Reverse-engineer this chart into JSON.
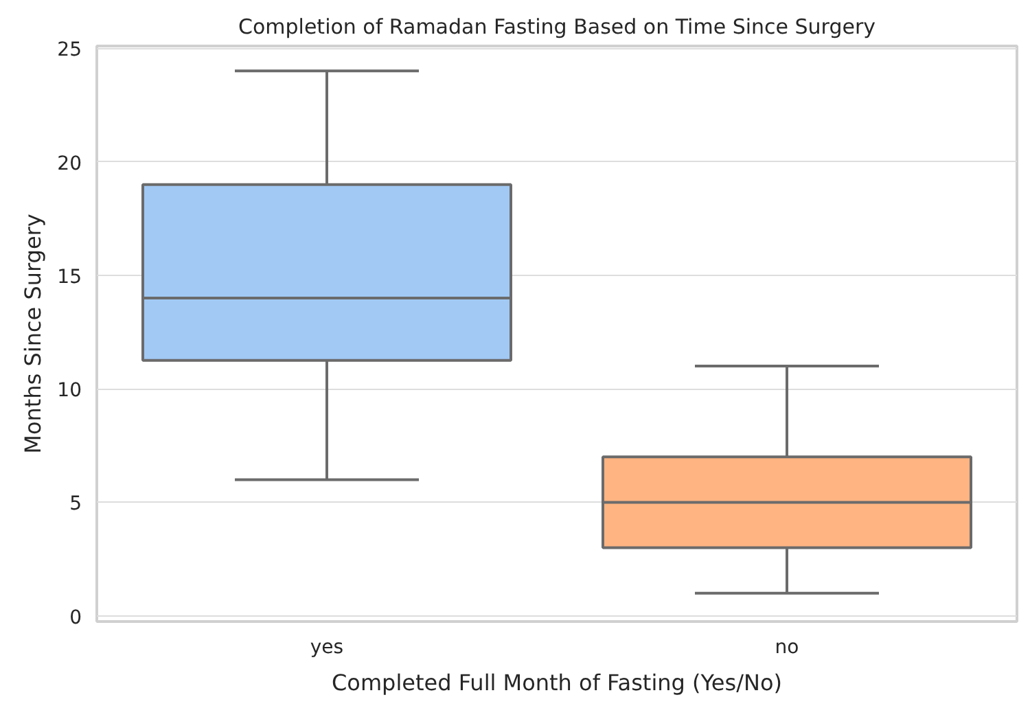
{
  "chart_data": {
    "type": "box",
    "title": "Completion of Ramadan Fasting Based on Time Since Surgery",
    "xlabel": "Completed Full Month of Fasting (Yes/No)",
    "ylabel": "Months Since Surgery",
    "categories": [
      "yes",
      "no"
    ],
    "boxes": [
      {
        "low": 6,
        "q1": 11.25,
        "median": 14,
        "q3": 19,
        "high": 24
      },
      {
        "low": 1,
        "q1": 3,
        "median": 5,
        "q3": 7,
        "high": 11
      }
    ],
    "colors": [
      "#a1c9f4",
      "#ffb482"
    ],
    "ylim": [
      -0.25,
      25.1
    ],
    "yticks": [
      0,
      5,
      10,
      15,
      20,
      25
    ],
    "grid": "y"
  }
}
